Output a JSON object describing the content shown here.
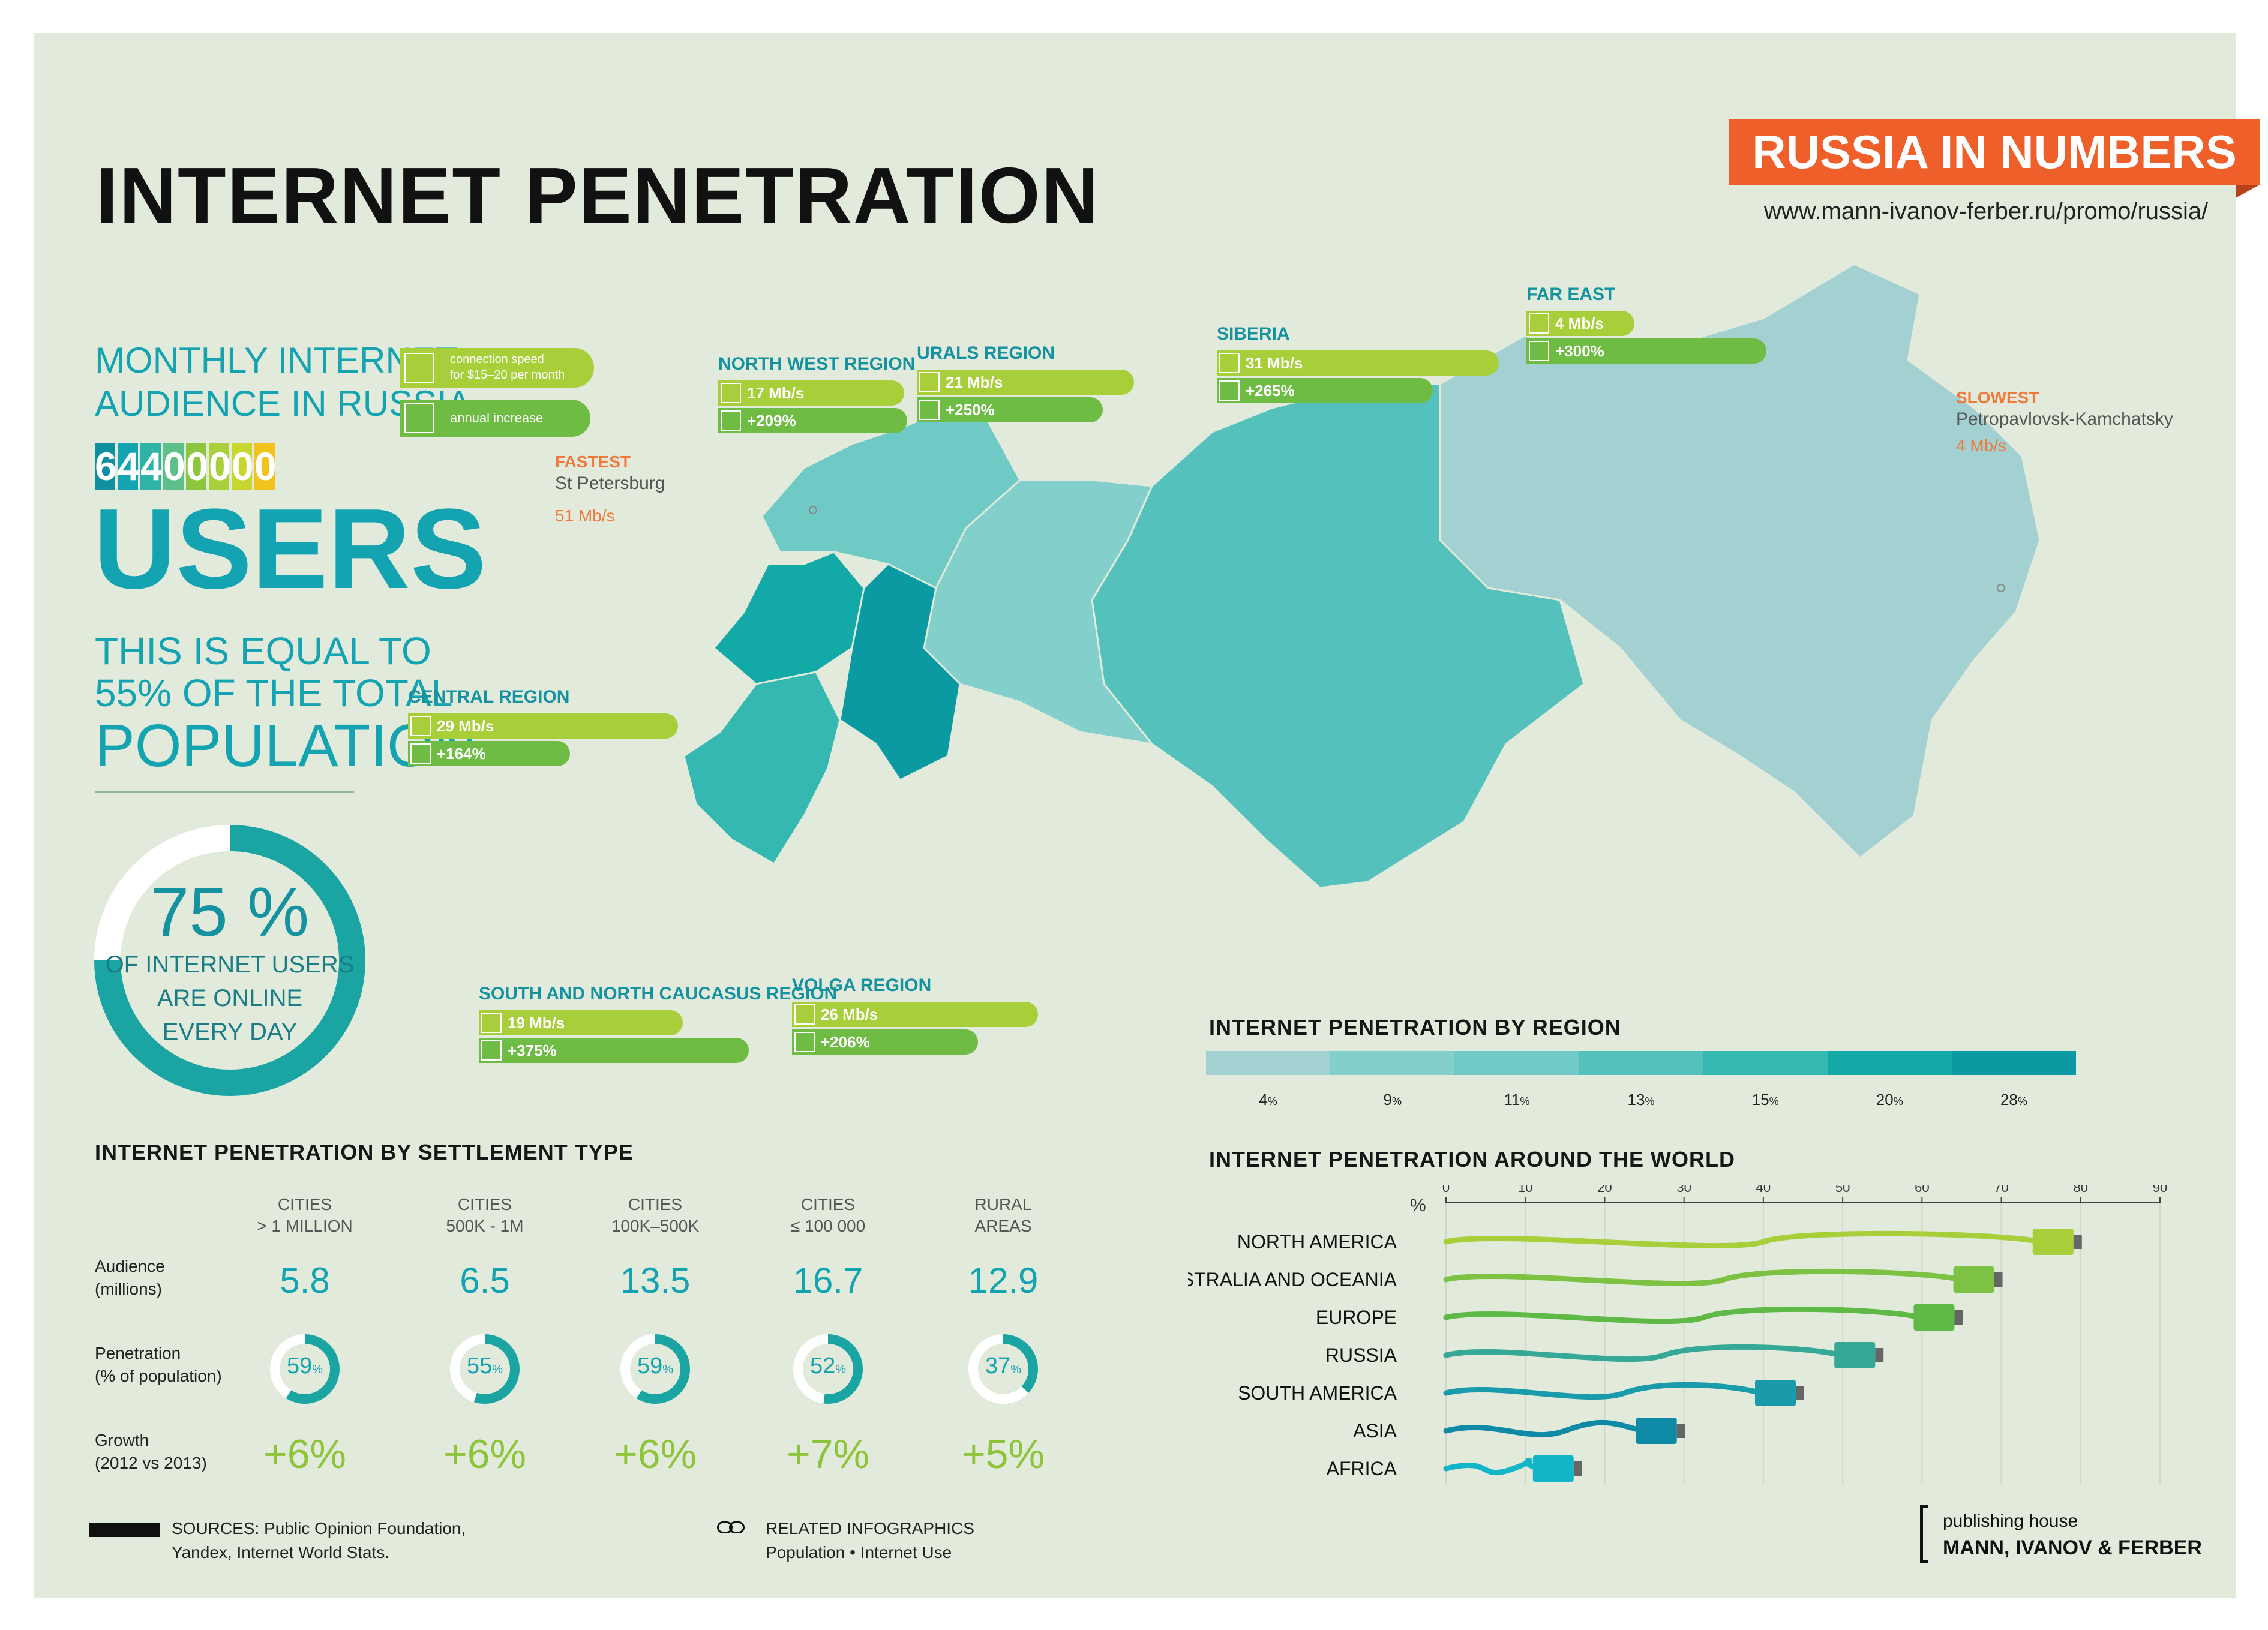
{
  "header": {
    "title": "INTERNET PENETRATION",
    "series_badge": "RUSSIA IN NUMBERS",
    "url": "www.mann-ivanov-ferber.ru/promo/russia/"
  },
  "audience": {
    "line1": "MONTHLY INTERNET",
    "line2": "AUDIENCE IN RUSSIA",
    "number_digits": [
      "6",
      "4",
      "4",
      "0",
      "0",
      "0",
      "0",
      "0"
    ],
    "digit_colors": [
      "#0f8fa0",
      "#14a3b0",
      "#2fb3a6",
      "#5fbf8a",
      "#8cc63f",
      "#a9cf3a",
      "#c8d72f",
      "#f2c31c"
    ],
    "users": "USERS",
    "equal_line1": "THIS IS EQUAL TO",
    "equal_line2": "55% OF THE TOTAL",
    "equal_line3": "POPULATION"
  },
  "online": {
    "value_text": "75 %",
    "value": 75,
    "line1": "OF INTERNET USERS",
    "line2": "ARE ONLINE",
    "line3": "EVERY DAY"
  },
  "legend_key": {
    "speed": "connection speed",
    "speed2": "for $15–20 per month",
    "increase": "annual increase"
  },
  "fastest": {
    "label": "FASTEST",
    "city": "St Petersburg",
    "speed": "51 Mb/s"
  },
  "slowest": {
    "label": "SLOWEST",
    "city": "Petropavlovsk-Kamchatsky",
    "speed": "4 Mb/s"
  },
  "regions": [
    {
      "name": "NORTH WEST REGION",
      "speed": "17 Mb/s",
      "increase": "+209%"
    },
    {
      "name": "URALS REGION",
      "speed": "21 Mb/s",
      "increase": "+250%"
    },
    {
      "name": "SIBERIA",
      "speed": "31 Mb/s",
      "increase": "+265%"
    },
    {
      "name": "FAR EAST",
      "speed": "4 Mb/s",
      "increase": "+300%"
    },
    {
      "name": "CENTRAL REGION",
      "speed": "29 Mb/s",
      "increase": "+164%"
    },
    {
      "name": "SOUTH AND NORTH CAUCASUS REGION",
      "speed": "19 Mb/s",
      "increase": "+375%"
    },
    {
      "name": "VOLGA REGION",
      "speed": "26 Mb/s",
      "increase": "+206%"
    }
  ],
  "region_legend": {
    "title": "INTERNET PENETRATION BY REGION",
    "items": [
      {
        "label": "4",
        "unit": "%",
        "color": "#a3d0d1"
      },
      {
        "label": "9",
        "unit": "%",
        "color": "#83cfcc"
      },
      {
        "label": "11",
        "unit": "%",
        "color": "#6fcac6"
      },
      {
        "label": "13",
        "unit": "%",
        "color": "#55c1bd"
      },
      {
        "label": "15",
        "unit": "%",
        "color": "#35b8b2"
      },
      {
        "label": "20",
        "unit": "%",
        "color": "#12a9a6"
      },
      {
        "label": "28",
        "unit": "%",
        "color": "#0c9aa2"
      }
    ]
  },
  "settlement": {
    "title": "INTERNET PENETRATION BY SETTLEMENT TYPE",
    "row_audience": [
      "Audience",
      "(millions)"
    ],
    "row_penetration": [
      "Penetration",
      "(% of population)"
    ],
    "row_growth": [
      "Growth",
      "(2012 vs 2013)"
    ],
    "columns": [
      {
        "h1": "CITIES",
        "h2": "> 1 MILLION",
        "audience": "5.8",
        "pen": 59,
        "pen_text": "59",
        "growth": "+6%"
      },
      {
        "h1": "CITIES",
        "h2": "500K - 1M",
        "audience": "6.5",
        "pen": 55,
        "pen_text": "55",
        "growth": "+6%"
      },
      {
        "h1": "CITIES",
        "h2": "100K–500K",
        "audience": "13.5",
        "pen": 59,
        "pen_text": "59",
        "growth": "+6%"
      },
      {
        "h1": "CITIES",
        "h2": "≤ 100 000",
        "audience": "16.7",
        "pen": 52,
        "pen_text": "52",
        "growth": "+7%"
      },
      {
        "h1": "RURAL",
        "h2": "AREAS",
        "audience": "12.9",
        "pen": 37,
        "pen_text": "37",
        "growth": "+5%"
      }
    ],
    "pct": "%"
  },
  "chart_data": {
    "type": "bar",
    "title": "INTERNET PENETRATION AROUND THE WORLD",
    "ylabel": "%",
    "xlim": [
      0,
      90
    ],
    "ticks": [
      0,
      10,
      20,
      30,
      40,
      50,
      60,
      70,
      80,
      90
    ],
    "categories": [
      "NORTH AMERICA",
      "AUSTRALIA AND OCEANIA",
      "EUROPE",
      "RUSSIA",
      "SOUTH AMERICA",
      "ASIA",
      "AFRICA"
    ],
    "values": [
      80,
      70,
      65,
      55,
      45,
      30,
      17
    ],
    "colors": [
      "#a8cf3a",
      "#7dc242",
      "#5fb946",
      "#35a898",
      "#1a9bab",
      "#0f8aa6",
      "#13b6c9"
    ]
  },
  "footer": {
    "sources1": "SOURCES: Public Opinion Foundation,",
    "sources2": "Yandex, Internet World Stats.",
    "related": "RELATED INFOGRAPHICS",
    "related2": "Population • Internet Use",
    "publisher1": "publishing house",
    "publisher2": "MANN, IVANOV & FERBER"
  }
}
